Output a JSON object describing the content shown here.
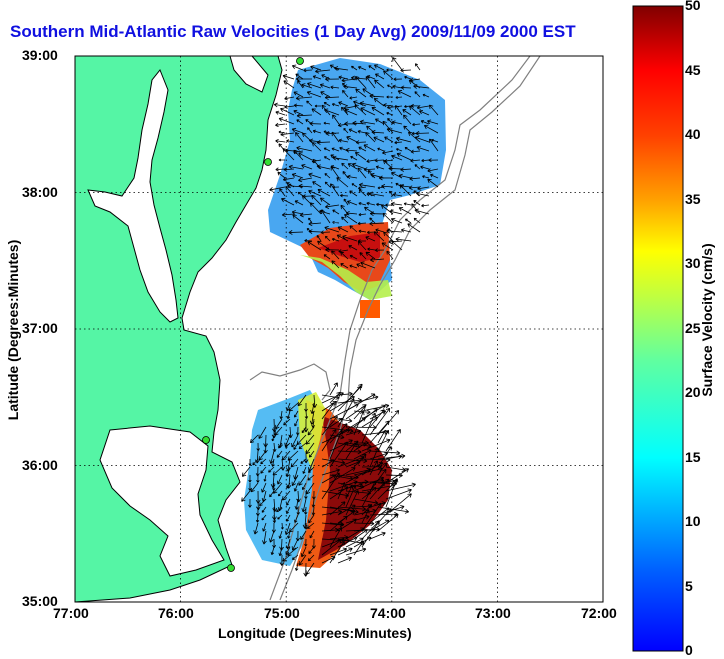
{
  "title": "Southern Mid-Atlantic Raw Velocities (1 Day Avg) 2009/11/09 2000 EST",
  "xlabel": "Longitude (Degrees:Minutes)",
  "ylabel": "Latitude (Degrees:Minutes)",
  "colorbar": {
    "label": "Surface Velocity (cm/s)",
    "ticks": [
      "0",
      "5",
      "10",
      "15",
      "20",
      "25",
      "30",
      "35",
      "40",
      "45",
      "50"
    ],
    "min": 0,
    "max": 50
  },
  "axes": {
    "x_ticks": [
      "77:00",
      "76:00",
      "75:00",
      "74:00",
      "73:00",
      "72:00"
    ],
    "y_ticks": [
      "39:00",
      "38:00",
      "37:00",
      "36:00",
      "35:00"
    ],
    "grid": true
  },
  "colors": {
    "land": "#55f5a5",
    "title": "#1010e0",
    "coast": "#000000",
    "bathymetry": "#808080",
    "station": "#33dd33"
  },
  "chart_data": {
    "type": "heatmap",
    "title": "Southern Mid-Atlantic Raw Velocities (1 Day Avg) 2009/11/09 2000 EST",
    "xlabel": "Longitude (Degrees:Minutes)",
    "ylabel": "Latitude (Degrees:Minutes)",
    "xlim": [
      -77,
      -72
    ],
    "ylim": [
      35,
      39
    ],
    "color_range": [
      0,
      50
    ],
    "color_label": "Surface Velocity (cm/s)"
  }
}
